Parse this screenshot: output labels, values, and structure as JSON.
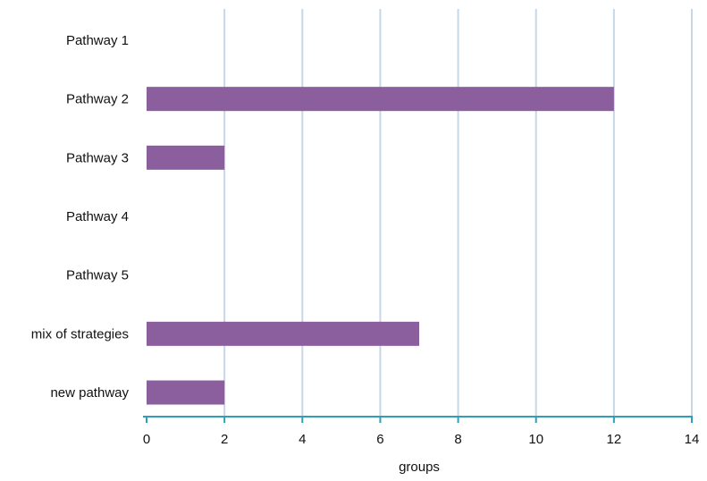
{
  "chart_data": {
    "type": "bar",
    "orientation": "horizontal",
    "categories": [
      "Pathway 1",
      "Pathway 2",
      "Pathway 3",
      "Pathway 4",
      "Pathway 5",
      "mix of strategies",
      "new pathway"
    ],
    "values": [
      0,
      12,
      2,
      0,
      0,
      7,
      2
    ],
    "xlabel": "groups",
    "ylabel": "",
    "title": "",
    "xlim": [
      0,
      14
    ],
    "xticks": [
      0,
      2,
      4,
      6,
      8,
      10,
      12,
      14
    ],
    "grid": "vertical",
    "legend": "none"
  },
  "colors": {
    "bar": "#8B5E9E",
    "grid": "#C7D7E6",
    "axis": "#2E9FB6",
    "text": "#111111"
  }
}
